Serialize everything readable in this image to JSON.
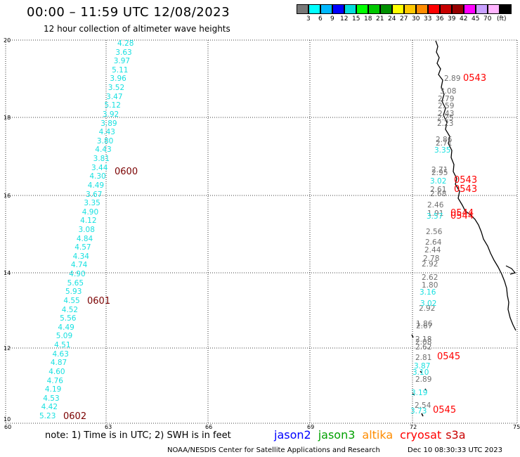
{
  "header": {
    "title": "00:00 – 11:59 UTC 12/08/2023",
    "subtitle": "12 hour collection of altimeter wave heights"
  },
  "legend": {
    "colors": [
      "#787878",
      "#00ffff",
      "#00b8ff",
      "#0000ff",
      "#00dcdc",
      "#00ff00",
      "#00c800",
      "#009000",
      "#ffff00",
      "#ffc800",
      "#ff8c00",
      "#ff0000",
      "#c80000",
      "#960000",
      "#ff00ff",
      "#c8a0ff",
      "#ffb4ff",
      "#000000"
    ],
    "labels": [
      "3",
      "6",
      "9",
      "12",
      "15",
      "18",
      "21",
      "24",
      "27",
      "30",
      "33",
      "36",
      "39",
      "42",
      "45",
      "70"
    ],
    "unit": "(ft)"
  },
  "axes": {
    "x_ticks": [
      "60",
      "63",
      "66",
      "69",
      "72",
      "75"
    ],
    "y_ticks": [
      "20",
      "18",
      "16",
      "14",
      "12",
      "10"
    ]
  },
  "track_a": {
    "values": [
      "4.28",
      "3.63",
      "3.97",
      "5.11",
      "3.96",
      "3.52",
      "3.47",
      "5.12",
      "3.92",
      "3.89",
      "4.43",
      "3.80",
      "4.43",
      "3.81",
      "3.44",
      "4.30",
      "4.49",
      "3.67",
      "3.35",
      "4.90",
      "4.12",
      "3.08",
      "4.84",
      "4.57",
      "4.34",
      "4.74",
      "4.90",
      "5.65",
      "5.93",
      "4.55",
      "4.52",
      "5.56",
      "4.49",
      "5.09",
      "4.51",
      "4.63",
      "4.87",
      "4.60",
      "4.76",
      "4.19",
      "4.53",
      "4.42",
      "5.23"
    ],
    "times": [
      "0600",
      "0601",
      "0602"
    ]
  },
  "track_b": {
    "gray_values": [
      "2.89",
      "3.08",
      "2.79",
      "2.59",
      "2.43",
      "2.25",
      "2.23",
      "2.86",
      "2.71",
      "2.71",
      "2.95",
      "2.61",
      "2.68",
      "2.46",
      "1.91",
      "2.56",
      "2.64",
      "2.44",
      "2.78",
      "2.92",
      "2.62",
      "1.80",
      "2.92",
      "1.86",
      "2.67",
      "2.18",
      "2.08",
      "2.62",
      "2.81",
      "2.89",
      "2.54"
    ],
    "cyan_values": [
      "3.35",
      "3.02",
      "3.57",
      "3.16",
      "3.02",
      "3.87",
      "3.10",
      "3.19",
      "3.73"
    ],
    "times": [
      "0543",
      "0543",
      "0543",
      "0544",
      "0544",
      "0545",
      "0545"
    ]
  },
  "footer": {
    "note": "note:  1) Time is in UTC;  2) SWH is in feet",
    "satellites": [
      {
        "name": "jason2",
        "color": "#0000ff"
      },
      {
        "name": "jason3",
        "color": "#00a000"
      },
      {
        "name": "altika",
        "color": "#ff8c00"
      },
      {
        "name": "cryosat",
        "color": "#ff0000"
      },
      {
        "name": "s3a",
        "color": "#c80000"
      }
    ],
    "credit": "NOAA/NESDIS Center for Satellite Applications and Research",
    "timestamp": "Dec 10 08:30:33 UTC 2023"
  }
}
